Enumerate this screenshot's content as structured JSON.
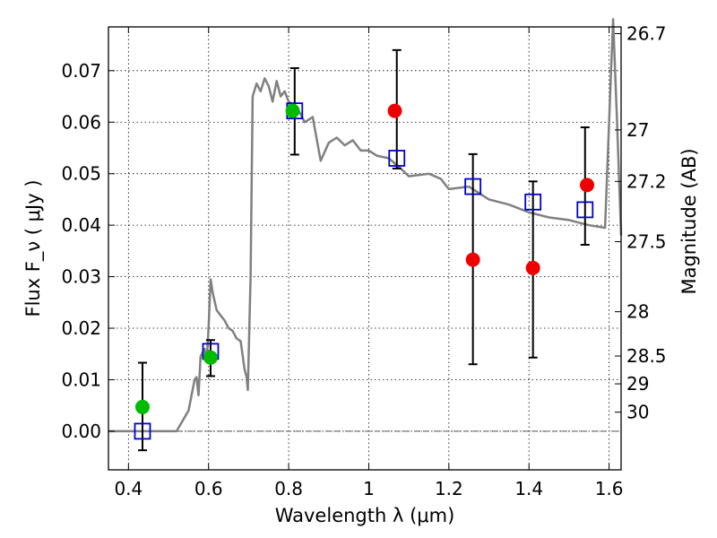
{
  "chart_data": {
    "type": "scatter",
    "title": "",
    "xlabel": "Wavelength  λ (μm)",
    "ylabel": "Flux  F_ν  ( μJy )",
    "ylabel_right": "Magnitude (AB)",
    "xlim": [
      0.35,
      1.63
    ],
    "ylim": [
      -0.0075,
      0.0785
    ],
    "grid": true,
    "x_ticks": [
      0.4,
      0.6,
      0.8,
      1.0,
      1.2,
      1.4,
      1.6
    ],
    "x_tick_labels": [
      "0.4",
      "0.6",
      "0.8",
      "1",
      "1.2",
      "1.4",
      "1.6"
    ],
    "y_ticks": [
      0.0,
      0.01,
      0.02,
      0.03,
      0.04,
      0.05,
      0.06,
      0.07
    ],
    "y_tick_labels": [
      "0.00",
      "0.01",
      "0.02",
      "0.03",
      "0.04",
      "0.05",
      "0.06",
      "0.07"
    ],
    "right_ticks": [
      {
        "label": "26.7",
        "flux": 0.0772
      },
      {
        "label": "27",
        "flux": 0.0585
      },
      {
        "label": "27.2",
        "flux": 0.0485
      },
      {
        "label": "27.5",
        "flux": 0.0368
      },
      {
        "label": "28",
        "flux": 0.0232
      },
      {
        "label": "28.5",
        "flux": 0.0146
      },
      {
        "label": "29",
        "flux": 0.0092
      },
      {
        "label": "30",
        "flux": 0.0037
      }
    ],
    "model_sed": {
      "color": "#808080",
      "points": [
        [
          0.35,
          0.0
        ],
        [
          0.52,
          0.0
        ],
        [
          0.55,
          0.004
        ],
        [
          0.565,
          0.01
        ],
        [
          0.57,
          0.0105
        ],
        [
          0.575,
          0.007
        ],
        [
          0.58,
          0.0145
        ],
        [
          0.59,
          0.016
        ],
        [
          0.595,
          0.0135
        ],
        [
          0.6,
          0.02
        ],
        [
          0.605,
          0.0295
        ],
        [
          0.61,
          0.027
        ],
        [
          0.62,
          0.0235
        ],
        [
          0.63,
          0.0225
        ],
        [
          0.64,
          0.0215
        ],
        [
          0.65,
          0.02
        ],
        [
          0.66,
          0.0195
        ],
        [
          0.67,
          0.018
        ],
        [
          0.68,
          0.0175
        ],
        [
          0.69,
          0.012
        ],
        [
          0.695,
          0.0105
        ],
        [
          0.698,
          0.008
        ],
        [
          0.705,
          0.03
        ],
        [
          0.71,
          0.065
        ],
        [
          0.72,
          0.0675
        ],
        [
          0.73,
          0.066
        ],
        [
          0.74,
          0.0685
        ],
        [
          0.75,
          0.067
        ],
        [
          0.76,
          0.064
        ],
        [
          0.77,
          0.068
        ],
        [
          0.78,
          0.065
        ],
        [
          0.79,
          0.066
        ],
        [
          0.8,
          0.064
        ],
        [
          0.82,
          0.063
        ],
        [
          0.84,
          0.06
        ],
        [
          0.86,
          0.061
        ],
        [
          0.88,
          0.0525
        ],
        [
          0.9,
          0.056
        ],
        [
          0.92,
          0.057
        ],
        [
          0.94,
          0.0555
        ],
        [
          0.96,
          0.0565
        ],
        [
          0.98,
          0.0545
        ],
        [
          1.0,
          0.0545
        ],
        [
          1.02,
          0.0535
        ],
        [
          1.05,
          0.053
        ],
        [
          1.08,
          0.051
        ],
        [
          1.1,
          0.0495
        ],
        [
          1.15,
          0.05
        ],
        [
          1.18,
          0.049
        ],
        [
          1.2,
          0.047
        ],
        [
          1.25,
          0.0475
        ],
        [
          1.3,
          0.045
        ],
        [
          1.35,
          0.044
        ],
        [
          1.4,
          0.0425
        ],
        [
          1.45,
          0.0415
        ],
        [
          1.5,
          0.041
        ],
        [
          1.55,
          0.04
        ],
        [
          1.59,
          0.0395
        ],
        [
          1.605,
          0.07
        ],
        [
          1.61,
          0.08
        ],
        [
          1.62,
          0.06
        ],
        [
          1.63,
          0.038
        ]
      ]
    },
    "series": [
      {
        "marker": "circle",
        "color": "#00bb00",
        "points": [
          {
            "x": 0.435,
            "y": 0.0047
          },
          {
            "x": 0.605,
            "y": 0.0143
          },
          {
            "x": 0.81,
            "y": 0.0622
          }
        ]
      },
      {
        "marker": "circle",
        "color": "#ee0000",
        "points": [
          {
            "x": 1.065,
            "y": 0.0622
          },
          {
            "x": 1.26,
            "y": 0.0333
          },
          {
            "x": 1.41,
            "y": 0.0317
          },
          {
            "x": 1.545,
            "y": 0.0478
          }
        ]
      },
      {
        "marker": "square",
        "color": "#0000cc",
        "points": [
          {
            "x": 0.435,
            "y": 0.0,
            "err_low": -0.0037,
            "err_high": 0.0133
          },
          {
            "x": 0.605,
            "y": 0.0155,
            "err_low": 0.0107,
            "err_high": 0.0177
          },
          {
            "x": 0.815,
            "y": 0.0622,
            "err_low": 0.0537,
            "err_high": 0.0705
          },
          {
            "x": 1.07,
            "y": 0.053,
            "err_low": 0.051,
            "err_high": 0.074
          },
          {
            "x": 1.26,
            "y": 0.0475,
            "err_low": 0.013,
            "err_high": 0.0538
          },
          {
            "x": 1.41,
            "y": 0.0445,
            "err_low": 0.0143,
            "err_high": 0.0485
          },
          {
            "x": 1.54,
            "y": 0.043,
            "err_low": 0.0362,
            "err_high": 0.059
          }
        ]
      }
    ]
  }
}
